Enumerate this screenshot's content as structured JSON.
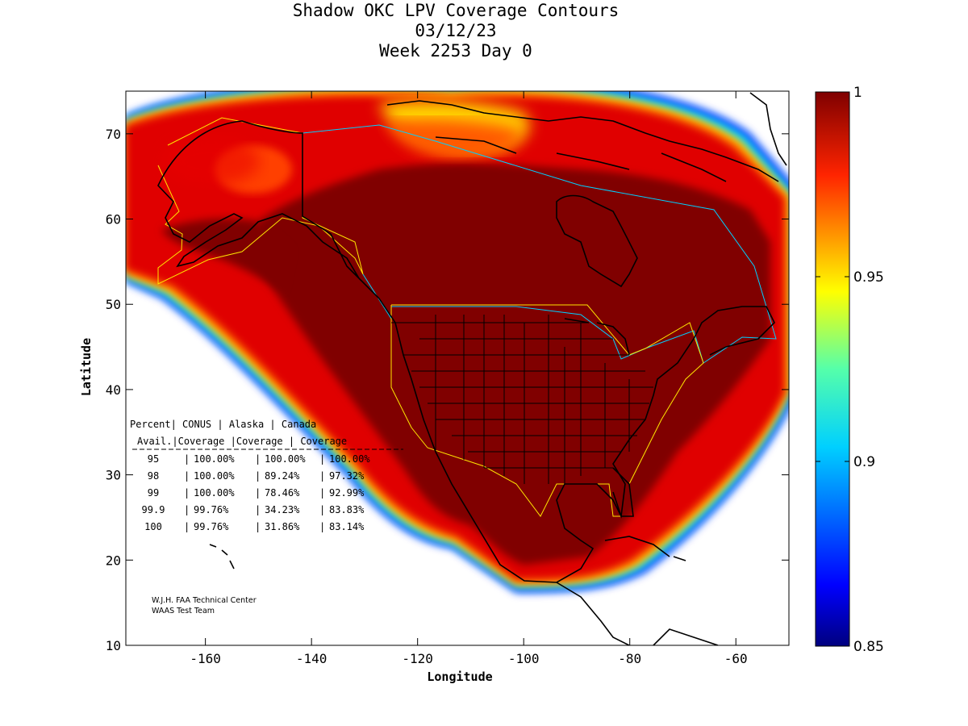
{
  "chart_data": {
    "type": "heatmap",
    "title": [
      "Shadow OKC LPV Coverage Contours",
      "03/12/23",
      "Week 2253 Day 0"
    ],
    "xlabel": "Longitude",
    "ylabel": "Latitude",
    "xlim": [
      -175,
      -50
    ],
    "ylim": [
      10,
      75
    ],
    "xticks": [
      -160,
      -140,
      -120,
      -100,
      -80,
      -60
    ],
    "yticks": [
      10,
      20,
      30,
      40,
      50,
      60,
      70
    ],
    "xtick_labels": [
      "-160",
      "-140",
      "-120",
      "-100",
      "-80",
      "-60"
    ],
    "ytick_labels": [
      "10",
      "20",
      "30",
      "40",
      "50",
      "60",
      "70"
    ],
    "colorbar": {
      "min": 0.85,
      "max": 1,
      "ticks": [
        1,
        0.95,
        0.9,
        0.85
      ],
      "tick_labels": [
        "1",
        "0.95",
        "0.9",
        "0.85"
      ],
      "colormap": "jet"
    },
    "table": {
      "headers": [
        "Percent",
        "CONUS",
        "Alaska",
        "Canada"
      ],
      "subheaders": [
        "Avail.",
        "Coverage",
        "Coverage",
        "Coverage"
      ],
      "rows": [
        [
          "95",
          "100.00%",
          "100.00%",
          "100.00%"
        ],
        [
          "98",
          "100.00%",
          "89.24%",
          "97.32%"
        ],
        [
          "99",
          "100.00%",
          "78.46%",
          "92.99%"
        ],
        [
          "99.9",
          "99.76%",
          "34.23%",
          "83.83%"
        ],
        [
          "100",
          "99.76%",
          "31.86%",
          "83.14%"
        ]
      ]
    },
    "credits": [
      "W.J.H. FAA Technical Center",
      "WAAS Test Team"
    ]
  },
  "colors": {
    "dark_red": "#800000",
    "red": "#e00000",
    "orange_red": "#ff3c00",
    "border_yellow": "#ffe600",
    "border_cyan": "#00d0ff",
    "coast": "#000000"
  }
}
